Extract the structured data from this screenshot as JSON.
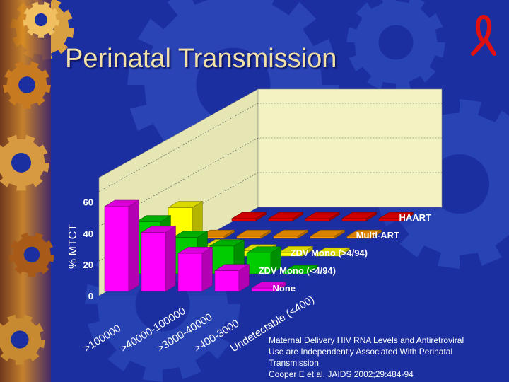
{
  "slide": {
    "title": "Perinatal Transmission",
    "ribbon_icon": "red-awareness-ribbon",
    "caption": {
      "line1": "Maternal Delivery HIV RNA Levels and Antiretroviral",
      "line2": "Use are Independently Associated With Perinatal",
      "line3": "Transmission",
      "line4": "Cooper E et al.  JAIDS 2002;29:484-94"
    }
  },
  "chart_data": {
    "type": "bar",
    "ylabel": "% MTCT",
    "ylim": [
      0,
      60
    ],
    "yticks": [
      "0",
      "20",
      "40",
      "60"
    ],
    "categories": [
      ">100000",
      ">40000-100000",
      ">3000-40000",
      ">400-3000",
      "Undetectable (<400)"
    ],
    "category_labels": [
      ">100000",
      ">40000-100000",
      ">3000-40000",
      ">400-3000",
      "Undetectable (<400)"
    ],
    "series": [
      {
        "name": "None",
        "color": "#ff00ff",
        "values": [
          49,
          34,
          22,
          12,
          2
        ]
      },
      {
        "name": "ZDV Mono (<4/94)",
        "color": "#00cc00",
        "values": [
          30,
          21,
          16,
          12,
          1
        ]
      },
      {
        "name": "ZDV Mono (>4/94)",
        "color": "#ffff00",
        "values": [
          28,
          6,
          3,
          2,
          1
        ]
      },
      {
        "name": "Multi-ART",
        "color": "#ff9900",
        "values": [
          1,
          1,
          1,
          1,
          1
        ]
      },
      {
        "name": "HAART",
        "color": "#ee0000",
        "values": [
          1,
          1,
          1,
          1,
          1
        ]
      }
    ],
    "legend": "row labels at right",
    "colors": {
      "background": "#1b2fa0",
      "back_wall": "#f2f2c2",
      "axis_text": "#ffffff"
    }
  }
}
